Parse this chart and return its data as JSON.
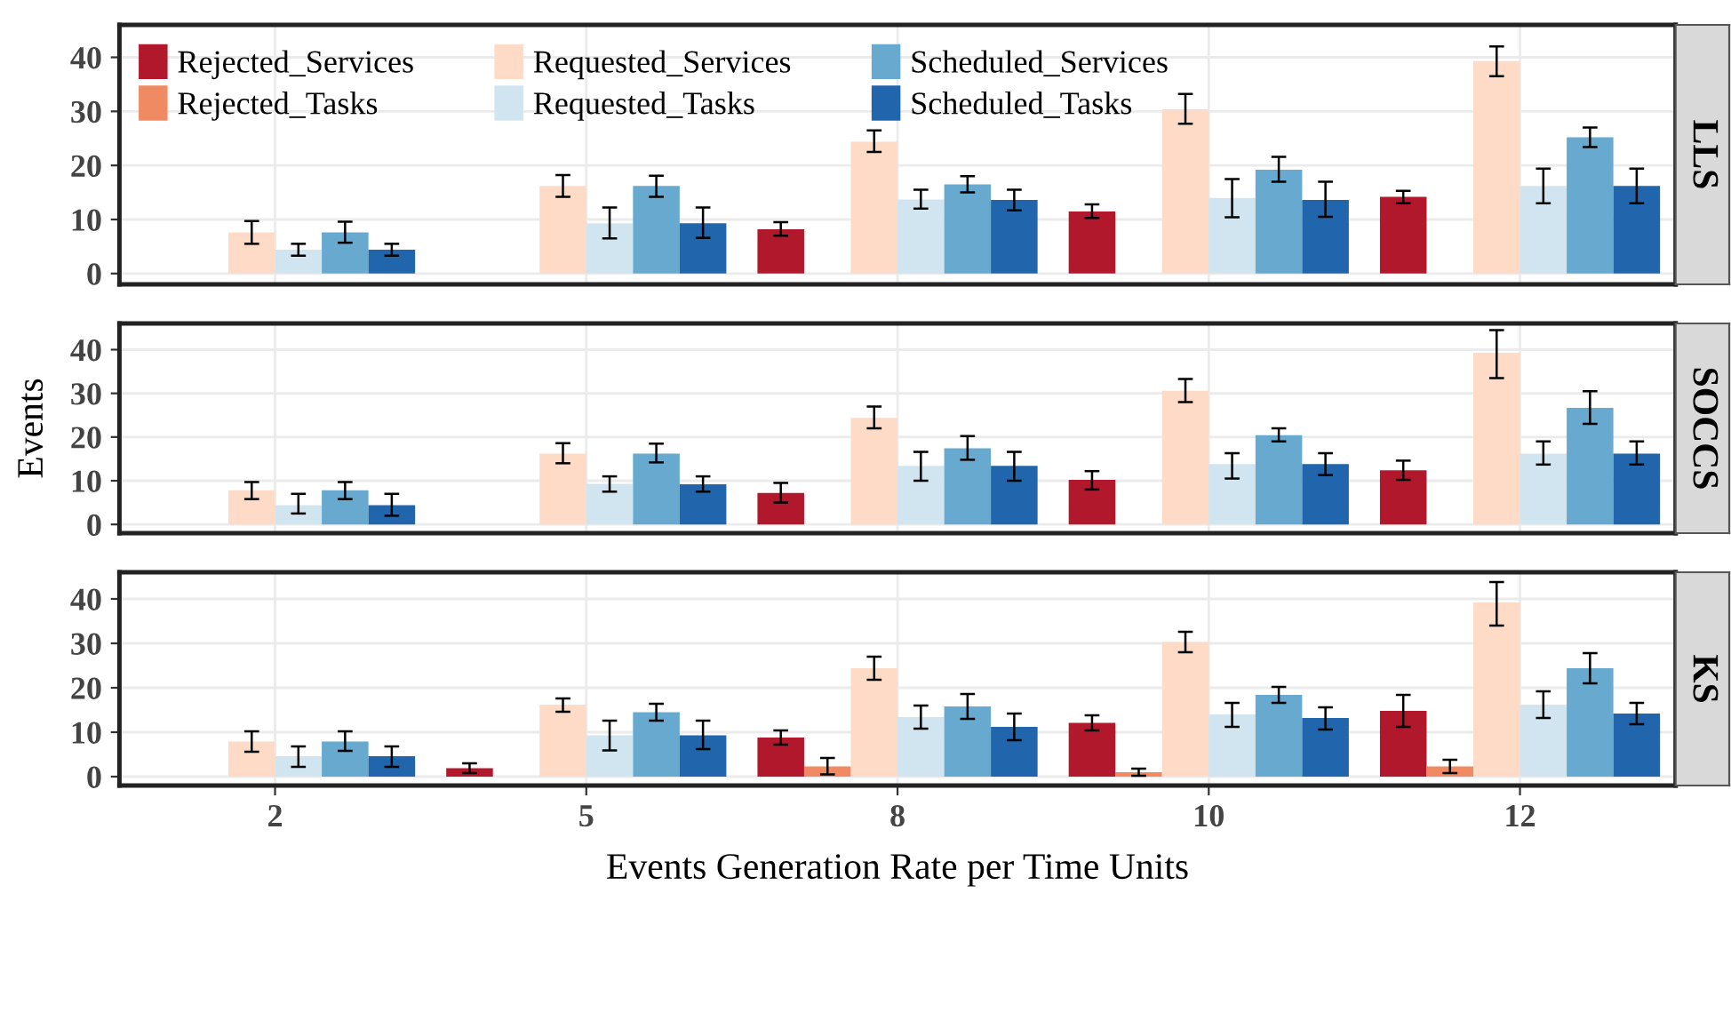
{
  "chart_data": [
    {
      "type": "bar",
      "title": "LLS",
      "categories": [
        "2",
        "5",
        "8",
        "10",
        "12"
      ],
      "ylim": [
        -2,
        46
      ],
      "yticks": [
        0,
        10,
        20,
        30,
        40
      ],
      "grid": true,
      "legend": "top left",
      "tick_labels": "y",
      "series": [
        {
          "name": "Rejected_Services",
          "color": "#b2182b",
          "values": [
            0,
            0,
            8.2,
            11.5,
            14.2
          ],
          "errors": [
            null,
            null,
            [
              7,
              9.5
            ],
            [
              10.3,
              12.8
            ],
            [
              13,
              15.3
            ]
          ]
        },
        {
          "name": "Rejected_Tasks",
          "color": "#ef8a62",
          "values": [
            0,
            0,
            0,
            0,
            0
          ],
          "errors": [
            null,
            null,
            null,
            null,
            null
          ]
        },
        {
          "name": "Requested_Services",
          "color": "#fddbc7",
          "values": [
            7.6,
            16.2,
            24.4,
            30.4,
            39.3
          ],
          "errors": [
            [
              5.5,
              9.7
            ],
            [
              14.2,
              18.2
            ],
            [
              22.5,
              26.5
            ],
            [
              27.7,
              33.2
            ],
            [
              36.5,
              42
            ]
          ]
        },
        {
          "name": "Requested_Tasks",
          "color": "#d1e5f0",
          "values": [
            4.4,
            9.3,
            13.7,
            14,
            16.2
          ],
          "errors": [
            [
              3.3,
              5.5
            ],
            [
              6.5,
              12.2
            ],
            [
              12,
              15.5
            ],
            [
              10.4,
              17.5
            ],
            [
              13,
              19.4
            ]
          ]
        },
        {
          "name": "Scheduled_Services",
          "color": "#67a9cf",
          "values": [
            7.6,
            16.2,
            16.5,
            19.2,
            25.2
          ],
          "errors": [
            [
              5.7,
              9.6
            ],
            [
              14.2,
              18.1
            ],
            [
              15,
              18
            ],
            [
              17,
              21.6
            ],
            [
              23.4,
              27
            ]
          ]
        },
        {
          "name": "Scheduled_Tasks",
          "color": "#2166ac",
          "values": [
            4.4,
            9.3,
            13.6,
            13.6,
            16.2
          ],
          "errors": [
            [
              3.3,
              5.5
            ],
            [
              6.6,
              12.2
            ],
            [
              11.7,
              15.5
            ],
            [
              10.5,
              17
            ],
            [
              13,
              19.4
            ]
          ]
        }
      ]
    },
    {
      "type": "bar",
      "title": "SOCCS",
      "ylabel": "Events",
      "categories": [
        "2",
        "5",
        "8",
        "10",
        "12"
      ],
      "ylim": [
        -2,
        46
      ],
      "yticks": [
        0,
        10,
        20,
        30,
        40
      ],
      "grid": true,
      "tick_labels": "y",
      "series": [
        {
          "color": "#b2182b",
          "values": [
            0,
            0,
            7.2,
            10.2,
            12.4
          ],
          "errors": [
            null,
            null,
            [
              5,
              9.5
            ],
            [
              8,
              12.2
            ],
            [
              10.2,
              14.6
            ]
          ]
        },
        {
          "color": "#ef8a62",
          "values": [
            0,
            0,
            0,
            0,
            0
          ],
          "errors": [
            null,
            null,
            null,
            null,
            null
          ]
        },
        {
          "color": "#fddbc7",
          "values": [
            7.8,
            16.2,
            24.4,
            30.6,
            39.3
          ],
          "errors": [
            [
              5.8,
              9.7
            ],
            [
              14,
              18.6
            ],
            [
              22,
              27
            ],
            [
              28,
              33.3
            ],
            [
              33.5,
              44.5
            ]
          ]
        },
        {
          "color": "#d1e5f0",
          "values": [
            4.4,
            9.3,
            13.4,
            13.8,
            16.2
          ],
          "errors": [
            [
              2.5,
              7
            ],
            [
              7.5,
              11
            ],
            [
              10,
              16.6
            ],
            [
              10.5,
              16.3
            ],
            [
              13.7,
              19
            ]
          ]
        },
        {
          "color": "#67a9cf",
          "values": [
            7.8,
            16.2,
            17.4,
            20.4,
            26.7
          ],
          "errors": [
            [
              5.8,
              9.7
            ],
            [
              14.2,
              18.5
            ],
            [
              14.8,
              20.2
            ],
            [
              19,
              22
            ],
            [
              23,
              30.5
            ]
          ]
        },
        {
          "color": "#2166ac",
          "values": [
            4.4,
            9.2,
            13.4,
            13.8,
            16.2
          ],
          "errors": [
            [
              2,
              7
            ],
            [
              7.5,
              11
            ],
            [
              10,
              16.6
            ],
            [
              11.3,
              16.3
            ],
            [
              13.7,
              19
            ]
          ]
        }
      ]
    },
    {
      "type": "bar",
      "title": "KS",
      "xlabel": "Events Generation Rate per Time Units",
      "categories": [
        "2",
        "5",
        "8",
        "10",
        "12"
      ],
      "ylim": [
        -2,
        46
      ],
      "yticks": [
        0,
        10,
        20,
        30,
        40
      ],
      "grid": true,
      "series": [
        {
          "color": "#b2182b",
          "values": [
            0,
            1.9,
            8.8,
            12.1,
            14.8
          ],
          "errors": [
            null,
            [
              0.8,
              3
            ],
            [
              7.2,
              10.4
            ],
            [
              10.4,
              13.8
            ],
            [
              11.2,
              18.4
            ]
          ]
        },
        {
          "color": "#ef8a62",
          "values": [
            0,
            0,
            2.3,
            1.0,
            2.3
          ],
          "errors": [
            null,
            null,
            [
              0.5,
              4.2
            ],
            [
              0.2,
              1.8
            ],
            [
              0.8,
              3.8
            ]
          ]
        },
        {
          "color": "#fddbc7",
          "values": [
            7.9,
            16.2,
            24.4,
            30.3,
            39.2
          ],
          "errors": [
            [
              5.6,
              10.2
            ],
            [
              14.6,
              17.6
            ],
            [
              21.8,
              27
            ],
            [
              28,
              32.6
            ],
            [
              34,
              43.8
            ]
          ]
        },
        {
          "color": "#d1e5f0",
          "values": [
            4.6,
            9.3,
            13.4,
            14,
            16.2
          ],
          "errors": [
            [
              2.2,
              6.8
            ],
            [
              5.9,
              12.6
            ],
            [
              10.8,
              16
            ],
            [
              11.2,
              16.6
            ],
            [
              13.2,
              19.2
            ]
          ]
        },
        {
          "color": "#67a9cf",
          "values": [
            7.9,
            14.5,
            15.8,
            18.4,
            24.4
          ],
          "errors": [
            [
              5.8,
              10.2
            ],
            [
              12.6,
              16.4
            ],
            [
              13,
              18.6
            ],
            [
              16.6,
              20.2
            ],
            [
              21,
              27.8
            ]
          ]
        },
        {
          "color": "#2166ac",
          "values": [
            4.6,
            9.3,
            11.2,
            13.2,
            14.2
          ],
          "errors": [
            [
              2.2,
              6.8
            ],
            [
              6.2,
              12.6
            ],
            [
              8.2,
              14.2
            ],
            [
              10.6,
              15.6
            ],
            [
              11.8,
              16.6
            ]
          ]
        }
      ]
    }
  ]
}
